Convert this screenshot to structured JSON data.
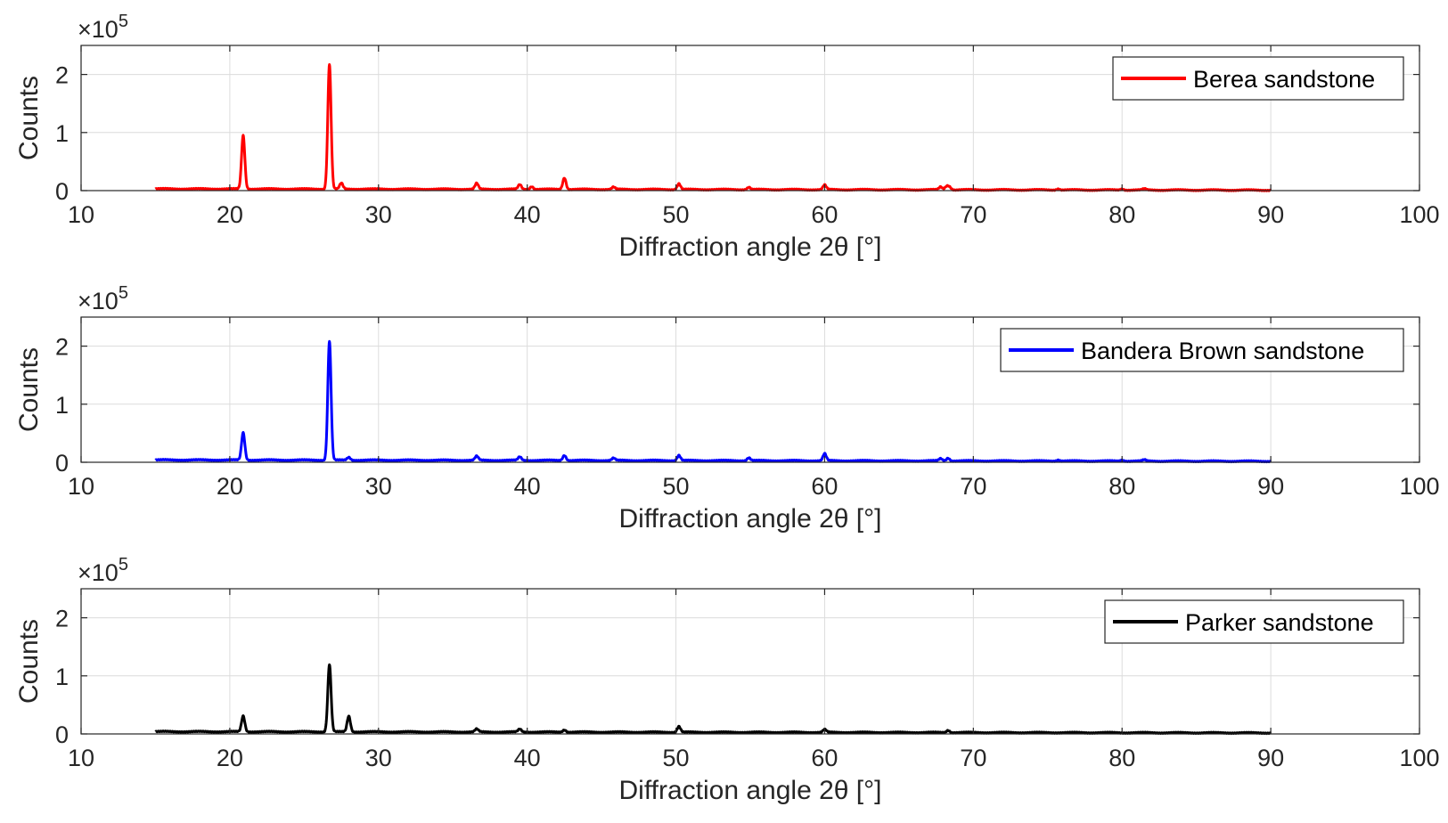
{
  "chart_data": [
    {
      "type": "line",
      "name": "berea",
      "series_name": "Berea sandstone",
      "color": "#ff0000",
      "xlabel": "Diffraction angle 2θ [°]",
      "ylabel": "Counts",
      "y_exponent_label": "×10",
      "y_exponent_power": "5",
      "xlim": [
        10,
        100
      ],
      "ylim": [
        0,
        2.5
      ],
      "xticks": [
        "10",
        "20",
        "30",
        "40",
        "50",
        "60",
        "70",
        "80",
        "90",
        "100"
      ],
      "yticks": [
        "0",
        "1",
        "2"
      ],
      "grid": true,
      "legend_position": "top-right",
      "x_range": [
        15,
        90
      ],
      "baseline": 0.03,
      "peaks": [
        [
          20.9,
          0.92
        ],
        [
          26.7,
          2.15
        ],
        [
          27.5,
          0.1
        ],
        [
          36.6,
          0.1
        ],
        [
          39.5,
          0.08
        ],
        [
          40.3,
          0.05
        ],
        [
          42.5,
          0.2
        ],
        [
          45.8,
          0.04
        ],
        [
          50.2,
          0.1
        ],
        [
          54.9,
          0.04
        ],
        [
          60.0,
          0.08
        ],
        [
          67.8,
          0.05
        ],
        [
          68.2,
          0.06
        ],
        [
          68.4,
          0.05
        ],
        [
          75.7,
          0.02
        ],
        [
          80.0,
          0.02
        ],
        [
          81.5,
          0.02
        ]
      ]
    },
    {
      "type": "line",
      "name": "bandera",
      "series_name": "Bandera Brown sandstone",
      "color": "#0000ff",
      "xlabel": "Diffraction angle 2θ [°]",
      "ylabel": "Counts",
      "y_exponent_label": "×10",
      "y_exponent_power": "5",
      "xlim": [
        10,
        100
      ],
      "ylim": [
        0,
        2.5
      ],
      "xticks": [
        "10",
        "20",
        "30",
        "40",
        "50",
        "60",
        "70",
        "80",
        "90",
        "100"
      ],
      "yticks": [
        "0",
        "1",
        "2"
      ],
      "grid": true,
      "legend_position": "top-right",
      "x_range": [
        15,
        90
      ],
      "baseline": 0.04,
      "peaks": [
        [
          20.9,
          0.47
        ],
        [
          26.7,
          2.05
        ],
        [
          28.0,
          0.05
        ],
        [
          36.6,
          0.07
        ],
        [
          39.5,
          0.06
        ],
        [
          42.5,
          0.09
        ],
        [
          45.8,
          0.04
        ],
        [
          50.2,
          0.09
        ],
        [
          54.9,
          0.05
        ],
        [
          60.0,
          0.12
        ],
        [
          67.8,
          0.04
        ],
        [
          68.3,
          0.05
        ],
        [
          75.7,
          0.02
        ],
        [
          80.0,
          0.02
        ],
        [
          81.5,
          0.02
        ]
      ]
    },
    {
      "type": "line",
      "name": "parker",
      "series_name": "Parker sandstone",
      "color": "#000000",
      "xlabel": "Diffraction angle 2θ [°]",
      "ylabel": "Counts",
      "y_exponent_label": "×10",
      "y_exponent_power": "5",
      "xlim": [
        10,
        100
      ],
      "ylim": [
        0,
        2.5
      ],
      "xticks": [
        "10",
        "20",
        "30",
        "40",
        "50",
        "60",
        "70",
        "80",
        "90",
        "100"
      ],
      "yticks": [
        "0",
        "1",
        "2"
      ],
      "grid": true,
      "legend_position": "top-right",
      "x_range": [
        15,
        90
      ],
      "baseline": 0.04,
      "peaks": [
        [
          20.9,
          0.27
        ],
        [
          26.7,
          1.16
        ],
        [
          28.0,
          0.27
        ],
        [
          36.6,
          0.05
        ],
        [
          39.5,
          0.05
        ],
        [
          42.5,
          0.04
        ],
        [
          50.2,
          0.1
        ],
        [
          60.0,
          0.05
        ],
        [
          68.3,
          0.04
        ]
      ]
    }
  ]
}
